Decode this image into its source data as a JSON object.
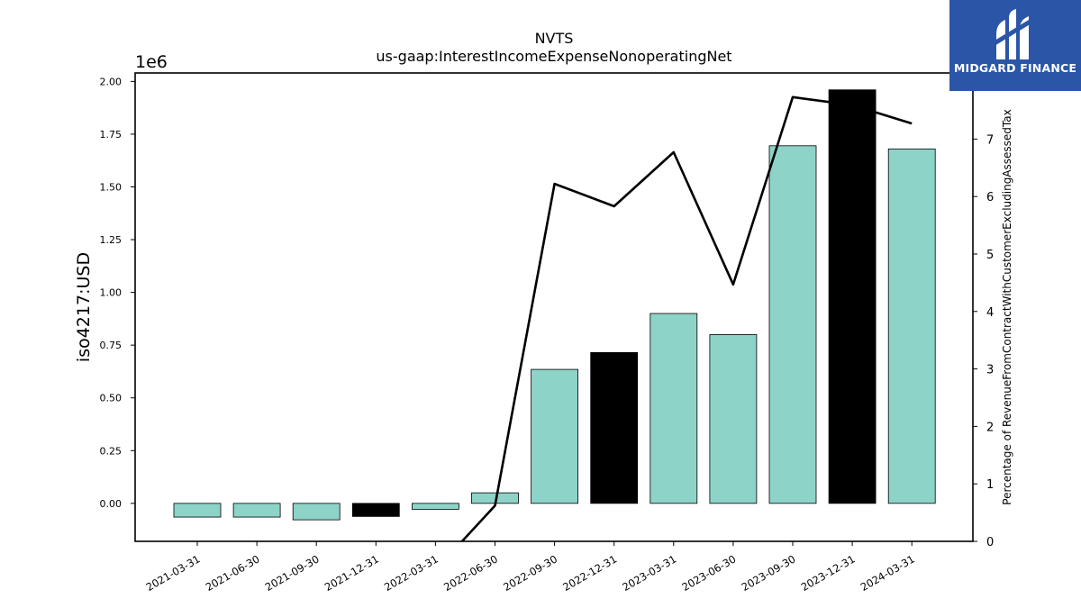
{
  "chart_data": {
    "type": "bar",
    "title": "NVTS",
    "subtitle": "us-gaap:InterestIncomeExpenseNonoperatingNet",
    "ylabel": "iso4217:USD",
    "y2label": "Percentage of RevenueFromContractWithCustomerExcludingAssessedTax",
    "y_offset_label": "1e6",
    "ylim": [
      -0.18,
      2.04
    ],
    "y_ticks": [
      "0.00",
      "0.25",
      "0.50",
      "0.75",
      "1.00",
      "1.25",
      "1.50",
      "1.75",
      "2.00"
    ],
    "y2lim": [
      0,
      8.15
    ],
    "y2_ticks": [
      "0",
      "1",
      "2",
      "3",
      "4",
      "5",
      "6",
      "7"
    ],
    "categories": [
      "2021-03-31",
      "2021-06-30",
      "2021-09-30",
      "2021-12-31",
      "2022-03-31",
      "2022-06-30",
      "2022-09-30",
      "2022-12-31",
      "2023-03-31",
      "2023-06-30",
      "2023-09-30",
      "2023-12-31",
      "2024-03-31"
    ],
    "series": [
      {
        "type": "bar",
        "values": [
          -0.065,
          -0.065,
          -0.078,
          -0.062,
          -0.028,
          0.05,
          0.635,
          0.715,
          0.9,
          0.8,
          1.695,
          1.96,
          1.68
        ],
        "colors": [
          "#8dd3c7",
          "#8dd3c7",
          "#8dd3c7",
          "#000000",
          "#8dd3c7",
          "#8dd3c7",
          "#8dd3c7",
          "#000000",
          "#8dd3c7",
          "#8dd3c7",
          "#8dd3c7",
          "#000000",
          "#8dd3c7"
        ]
      },
      {
        "type": "line",
        "axis": "right",
        "values": [
          null,
          null,
          null,
          null,
          -0.5,
          0.62,
          6.22,
          5.83,
          6.77,
          4.47,
          7.73,
          7.59,
          7.27
        ],
        "color": "#000000"
      }
    ]
  },
  "logo": {
    "text": "MIDGARD FINANCE",
    "color": "#2b56a8"
  }
}
